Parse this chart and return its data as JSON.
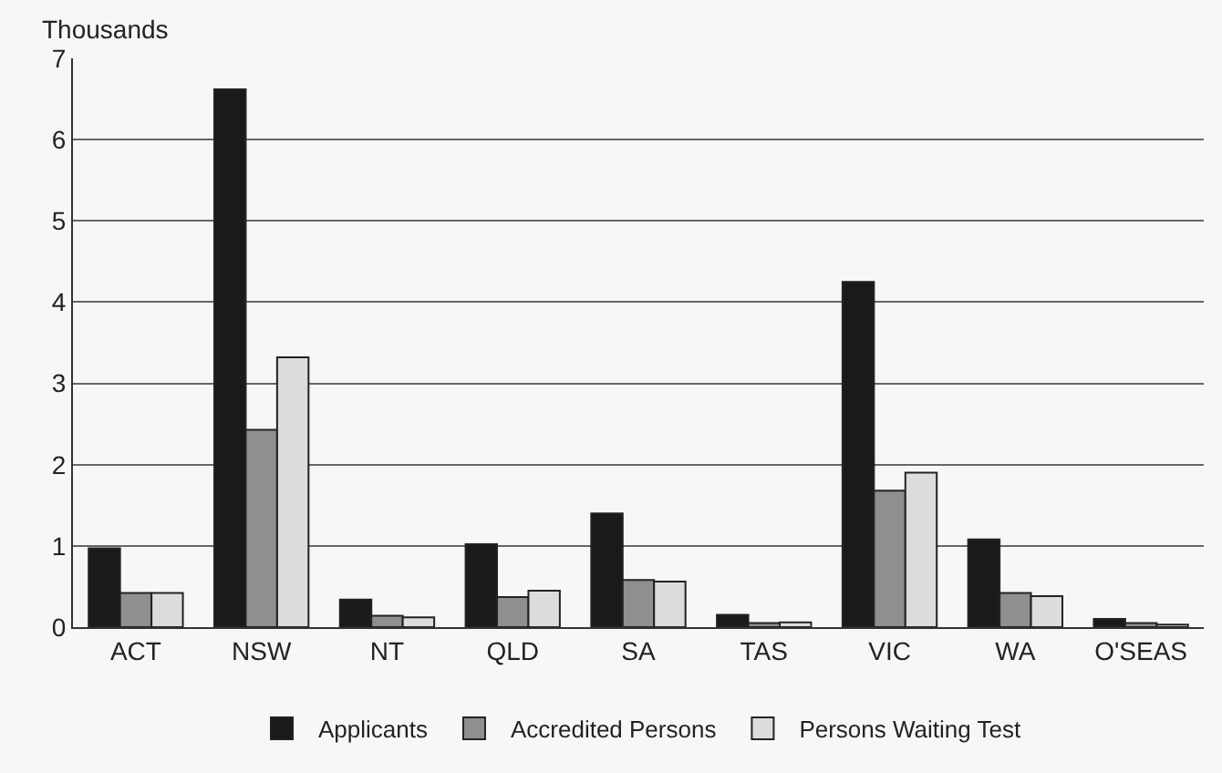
{
  "chart_data": {
    "type": "bar",
    "ylabel": "Thousands",
    "categories": [
      "ACT",
      "NSW",
      "NT",
      "QLD",
      "SA",
      "TAS",
      "VIC",
      "WA",
      "O'SEAS"
    ],
    "series": [
      {
        "name": "Applicants",
        "color": "#1a1a1a",
        "values": [
          0.97,
          6.62,
          0.34,
          1.02,
          1.4,
          0.15,
          4.25,
          1.08,
          0.1
        ]
      },
      {
        "name": "Accredited Persons",
        "color": "#8f8f8f",
        "values": [
          0.42,
          2.43,
          0.14,
          0.37,
          0.58,
          0.05,
          1.68,
          0.42,
          0.05
        ]
      },
      {
        "name": "Persons Waiting Test",
        "color": "#dcdcdc",
        "values": [
          0.42,
          3.32,
          0.12,
          0.45,
          0.56,
          0.06,
          1.9,
          0.38,
          0.03
        ]
      }
    ],
    "ylim": [
      0,
      7
    ],
    "yticks": [
      0,
      1,
      2,
      3,
      4,
      5,
      6,
      7
    ],
    "grid": "y",
    "legend": "bottom"
  }
}
